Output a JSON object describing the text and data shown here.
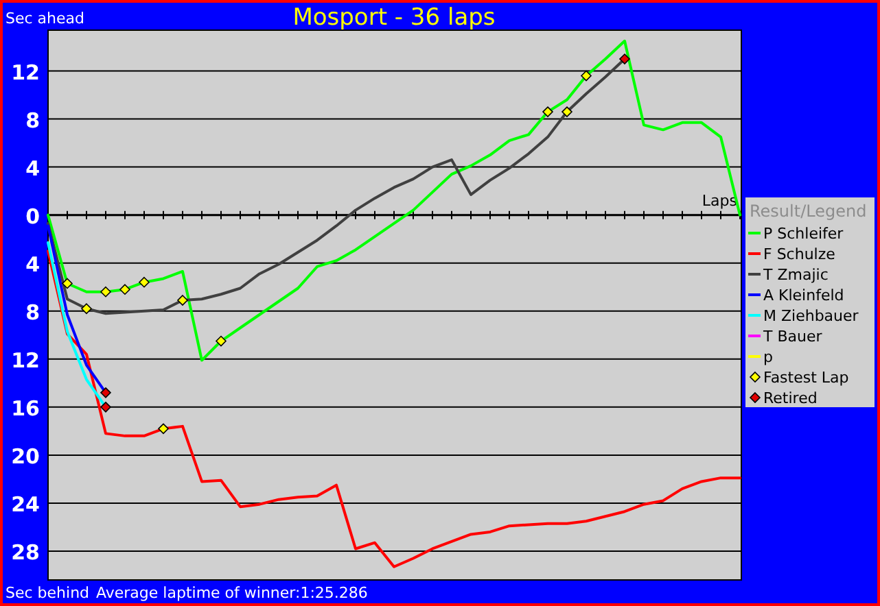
{
  "chart_data": {
    "type": "line",
    "title": "Mosport - 36 laps",
    "ylabel": "Sec ahead",
    "xlabel": "Laps",
    "legend_title": "Result/Legend",
    "legend": "right",
    "grid": "y",
    "annotations": [
      "Sec behind",
      "Average laptime of winner:1:25.286"
    ],
    "categories": [
      null,
      null,
      null,
      null,
      null,
      null,
      null,
      null,
      null,
      null,
      null,
      null,
      null,
      null,
      null,
      null,
      null,
      null,
      null,
      null,
      null,
      null,
      null,
      null,
      null,
      null,
      null,
      null,
      null,
      null,
      null,
      null,
      null,
      null,
      null,
      null,
      null
    ],
    "ylim": [
      -30.4,
      15.4
    ],
    "yticks": [
      12,
      8,
      4,
      0,
      {
        "value": -4,
        "label": "4"
      },
      {
        "value": -8,
        "label": "8"
      },
      {
        "value": -12,
        "label": "12"
      },
      {
        "value": -16,
        "label": "16"
      },
      {
        "value": -20,
        "label": "20"
      },
      {
        "value": -24,
        "label": "24"
      },
      {
        "value": -28,
        "label": "28"
      }
    ],
    "series": [
      {
        "name": "P Schleifer",
        "color": "#00ff00",
        "values": [
          0,
          -5.7,
          -6.4,
          -6.4,
          -6.2,
          -5.6,
          -5.3,
          -4.7,
          -12.1,
          -10.5,
          -9.4,
          -8.3,
          -7.2,
          -6.1,
          -4.3,
          -3.8,
          -2.9,
          -1.8,
          -0.7,
          0.4,
          1.9,
          3.4,
          4.1,
          5.0,
          6.2,
          6.7,
          8.6,
          9.6,
          11.6,
          13.0,
          14.5,
          7.5,
          7.1,
          7.7,
          7.7,
          6.5,
          0
        ]
      },
      {
        "name": "F Schulze",
        "color": "#ff0000",
        "values": [
          -3.0,
          -9.9,
          -11.6,
          -18.2,
          -18.4,
          -18.4,
          -17.8,
          -17.6,
          -22.2,
          -22.1,
          -24.3,
          -24.1,
          -23.7,
          -23.5,
          -23.4,
          -22.5,
          -27.8,
          -27.3,
          -29.3,
          -28.6,
          -27.8,
          -27.2,
          -26.6,
          -26.4,
          -25.9,
          -25.8,
          -25.7,
          -25.7,
          -25.5,
          -25.1,
          -24.7,
          -24.1,
          -23.8,
          -22.8,
          -22.2,
          -21.9,
          -21.9
        ]
      },
      {
        "name": "T Zmajic",
        "color": "#404040",
        "values": [
          -0.7,
          -7.0,
          -7.8,
          -8.2,
          -8.1,
          -8.0,
          -7.9,
          -7.1,
          -7.0,
          -6.6,
          -6.1,
          -4.9,
          -4.1,
          -3.1,
          -2.1,
          -0.9,
          0.4,
          1.4,
          2.3,
          3.0,
          4.0,
          4.6,
          1.7,
          2.9,
          3.9,
          5.1,
          6.5,
          8.6,
          10.1,
          11.5,
          13.0,
          null,
          null,
          null,
          null,
          null,
          null
        ]
      },
      {
        "name": "A Kleinfeld",
        "color": "#0000ff",
        "values": [
          -0.9,
          -8.3,
          -12.5,
          -14.8,
          null,
          null,
          null,
          null,
          null,
          null,
          null,
          null,
          null,
          null,
          null,
          null,
          null,
          null,
          null,
          null,
          null,
          null,
          null,
          null,
          null,
          null,
          null,
          null,
          null,
          null,
          null,
          null,
          null,
          null,
          null,
          null,
          null
        ]
      },
      {
        "name": "M Ziehbauer",
        "color": "#00ffff",
        "values": [
          -2.3,
          -9.7,
          -13.7,
          -16.0,
          null,
          null,
          null,
          null,
          null,
          null,
          null,
          null,
          null,
          null,
          null,
          null,
          null,
          null,
          null,
          null,
          null,
          null,
          null,
          null,
          null,
          null,
          null,
          null,
          null,
          null,
          null,
          null,
          null,
          null,
          null,
          null,
          null
        ]
      },
      {
        "name": "T Bauer",
        "color": "#ff00ff",
        "values": [
          null,
          null,
          null,
          null,
          null,
          null,
          null,
          null,
          null,
          null,
          null,
          null,
          null,
          null,
          null,
          null,
          null,
          null,
          null,
          null,
          null,
          null,
          null,
          null,
          null,
          null,
          null,
          null,
          null,
          null,
          null,
          null,
          null,
          null,
          null,
          null,
          null
        ]
      },
      {
        "name": "p",
        "color": "#ffff00",
        "values": [
          null,
          null,
          null,
          null,
          null,
          null,
          null,
          null,
          null,
          null,
          null,
          null,
          null,
          null,
          null,
          null,
          null,
          null,
          null,
          null,
          null,
          null,
          null,
          null,
          null,
          null,
          null,
          null,
          null,
          null,
          null,
          null,
          null,
          null,
          null,
          null,
          null
        ]
      },
      {
        "name": "Fastest Lap",
        "type": "scatter",
        "marker": "diamond",
        "color": "#ffff00",
        "values": [
          null,
          -5.7,
          -7.8,
          -6.4,
          -6.2,
          -5.6,
          -17.8,
          -7.1,
          null,
          -10.5,
          null,
          null,
          null,
          null,
          null,
          null,
          null,
          null,
          null,
          null,
          null,
          null,
          null,
          null,
          null,
          null,
          8.6,
          8.6,
          11.6,
          null,
          null,
          null,
          null,
          null,
          null,
          null,
          null
        ]
      },
      {
        "name": "Retired",
        "type": "scatter",
        "marker": "diamond",
        "color": "#e00000",
        "values": [
          null,
          null,
          null,
          -14.8,
          null,
          null,
          null,
          null,
          null,
          null,
          null,
          null,
          null,
          null,
          null,
          null,
          null,
          null,
          null,
          null,
          null,
          null,
          null,
          null,
          null,
          null,
          null,
          null,
          null,
          null,
          13.0,
          null,
          null,
          null,
          null,
          null,
          null
        ]
      },
      {
        "type": "scatter",
        "marker": "diamond",
        "color": "#e00000",
        "values": [
          null,
          null,
          null,
          -16.0,
          null,
          null,
          null,
          null,
          null,
          null,
          null,
          null,
          null,
          null,
          null,
          null,
          null,
          null,
          null,
          null,
          null,
          null,
          null,
          null,
          null,
          null,
          null,
          null,
          null,
          null,
          null,
          null,
          null,
          null,
          null,
          null,
          null
        ]
      }
    ]
  }
}
